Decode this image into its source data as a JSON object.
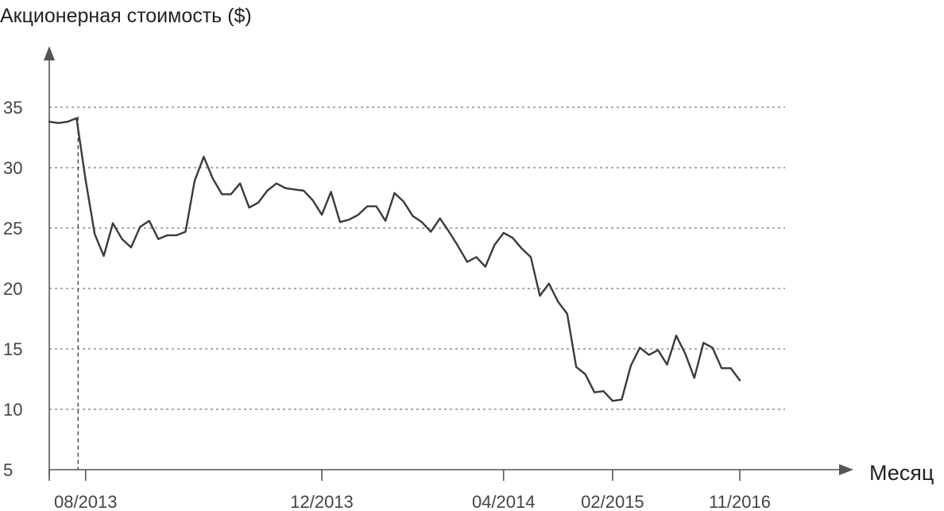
{
  "chart_data": {
    "type": "line",
    "title": "Акционерная стоимость ($)",
    "xlabel": "Месяц",
    "ylabel": "",
    "ylim": [
      5,
      38
    ],
    "yticks": [
      5,
      10,
      15,
      20,
      25,
      30,
      35
    ],
    "grid": true,
    "x_ticks": [
      {
        "label": "08/2013",
        "index": 4
      },
      {
        "label": "12/2013",
        "index": 30
      },
      {
        "label": "04/2014",
        "index": 50
      },
      {
        "label": "02/2015",
        "index": 62
      },
      {
        "label": "11/2016",
        "index": 76
      }
    ],
    "marker_index": 2,
    "series": [
      {
        "values": [
          33.8,
          33.7,
          33.8,
          34.1,
          29.0,
          24.5,
          22.7,
          25.4,
          24.1,
          23.4,
          25.1,
          25.6,
          24.1,
          24.4,
          24.4,
          24.7,
          28.9,
          30.9,
          29.1,
          27.8,
          27.8,
          28.7,
          26.7,
          27.1,
          28.1,
          28.7,
          28.3,
          28.2,
          28.1,
          27.3,
          26.1,
          28.0,
          25.5,
          25.7,
          26.1,
          26.8,
          26.8,
          25.6,
          27.9,
          27.2,
          26.0,
          25.5,
          24.7,
          25.8,
          24.7,
          23.5,
          22.2,
          22.6,
          21.8,
          23.6,
          24.6,
          24.2,
          23.3,
          22.6,
          19.4,
          20.4,
          18.9,
          17.9,
          13.5,
          12.9,
          11.4,
          11.5,
          10.7,
          10.8,
          13.6,
          15.1,
          14.5,
          14.9,
          13.7,
          16.1,
          14.6,
          12.6,
          15.5,
          15.1,
          13.4,
          13.4,
          12.4
        ]
      }
    ]
  }
}
